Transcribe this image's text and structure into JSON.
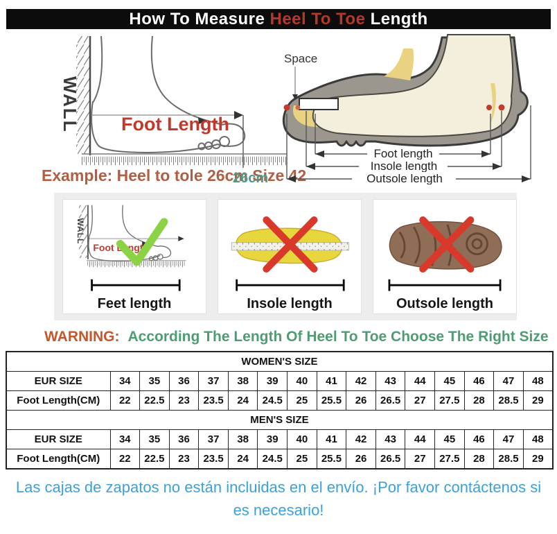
{
  "title": {
    "part1": "How To Measure ",
    "highlight": "Heel To Toe",
    "part2": " Length"
  },
  "left_diagram": {
    "wall": "WALL",
    "foot_length": "Foot Length",
    "example": "Example: Heel to tole 26cm Size 42",
    "ruler_mark": "26cm"
  },
  "shoe_diagram": {
    "space": "Space",
    "foot_length": "Foot length",
    "insole_length": "Insole length",
    "outsole_length": "Outsole length"
  },
  "panels": [
    {
      "wall": "WALL",
      "inner_label": "Foot Length",
      "caption": "Feet length",
      "mark": "correct-check"
    },
    {
      "caption": "Insole length",
      "mark": "wrong-cross"
    },
    {
      "caption": "Outsole length",
      "mark": "wrong-cross"
    }
  ],
  "warning": {
    "label": "WARNING:",
    "message": "According The Length Of Heel To Toe Choose The Right Size"
  },
  "tables": [
    {
      "title": "WOMEN'S SIZE",
      "rows": [
        {
          "label": "EUR SIZE",
          "values": [
            "34",
            "35",
            "36",
            "37",
            "38",
            "39",
            "40",
            "41",
            "42",
            "43",
            "44",
            "45",
            "46",
            "47",
            "48"
          ]
        },
        {
          "label": "Foot Length(CM)",
          "values": [
            "22",
            "22.5",
            "23",
            "23.5",
            "24",
            "24.5",
            "25",
            "25.5",
            "26",
            "26.5",
            "27",
            "27.5",
            "28",
            "28.5",
            "29"
          ]
        }
      ]
    },
    {
      "title": "MEN'S SIZE",
      "rows": [
        {
          "label": "EUR SIZE",
          "values": [
            "34",
            "35",
            "36",
            "37",
            "38",
            "39",
            "40",
            "41",
            "42",
            "43",
            "44",
            "45",
            "46",
            "47",
            "48"
          ]
        },
        {
          "label": "Foot Length(CM)",
          "values": [
            "22",
            "22.5",
            "23",
            "23.5",
            "24",
            "24.5",
            "25",
            "25.5",
            "26",
            "26.5",
            "27",
            "27.5",
            "28",
            "28.5",
            "29"
          ]
        }
      ]
    }
  ],
  "footer": {
    "note": "Las cajas de zapatos no están incluidas en el envío. ¡Por favor contáctenos si es necesario!"
  },
  "colors": {
    "title_bg": "#0c0c0c",
    "title_highlight_red": "#b5382a",
    "foot_length_red": "#c0392b",
    "example_brown": "#b05f45",
    "ruler_teal": "#4d9b8a",
    "warning_orange": "#c4572c",
    "warning_green": "#4e9d72",
    "table_red": "#e02222",
    "note_blue": "#3ba1dc",
    "check_green": "#8bd344",
    "cross_red": "#d8392a",
    "shoe_gray": "#9b978e",
    "insole_yellow": "#e8d63e",
    "outsole_brown": "#8f6d56"
  }
}
